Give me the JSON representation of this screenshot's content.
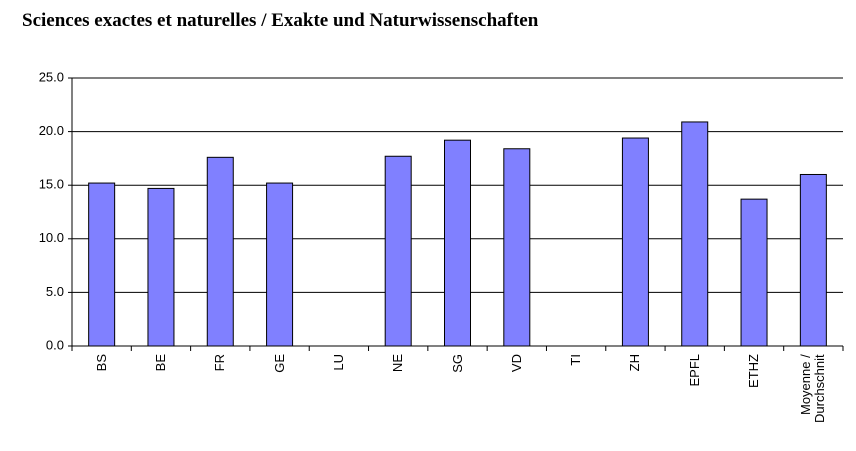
{
  "chart_data": {
    "type": "bar",
    "title": "Sciences exactes et naturelles / Exakte und Naturwissenschaften",
    "categories": [
      "BS",
      "BE",
      "FR",
      "GE",
      "LU",
      "NE",
      "SG",
      "VD",
      "TI",
      "ZH",
      "EPFL",
      "ETHZ",
      "Moyenne / Durchschnit"
    ],
    "values": [
      15.2,
      14.7,
      17.6,
      15.2,
      null,
      17.7,
      19.2,
      18.4,
      null,
      19.4,
      20.9,
      13.7,
      16.0
    ],
    "color": "#8080ff",
    "ylim": [
      0,
      25
    ],
    "yticks": [
      {
        "value": 0,
        "label": "0.0"
      },
      {
        "value": 5,
        "label": "5.0"
      },
      {
        "value": 10,
        "label": "10.0"
      },
      {
        "value": 15,
        "label": "15.0"
      },
      {
        "value": 20,
        "label": "20.0"
      },
      {
        "value": 25,
        "label": "25.0"
      }
    ],
    "grid": true
  }
}
